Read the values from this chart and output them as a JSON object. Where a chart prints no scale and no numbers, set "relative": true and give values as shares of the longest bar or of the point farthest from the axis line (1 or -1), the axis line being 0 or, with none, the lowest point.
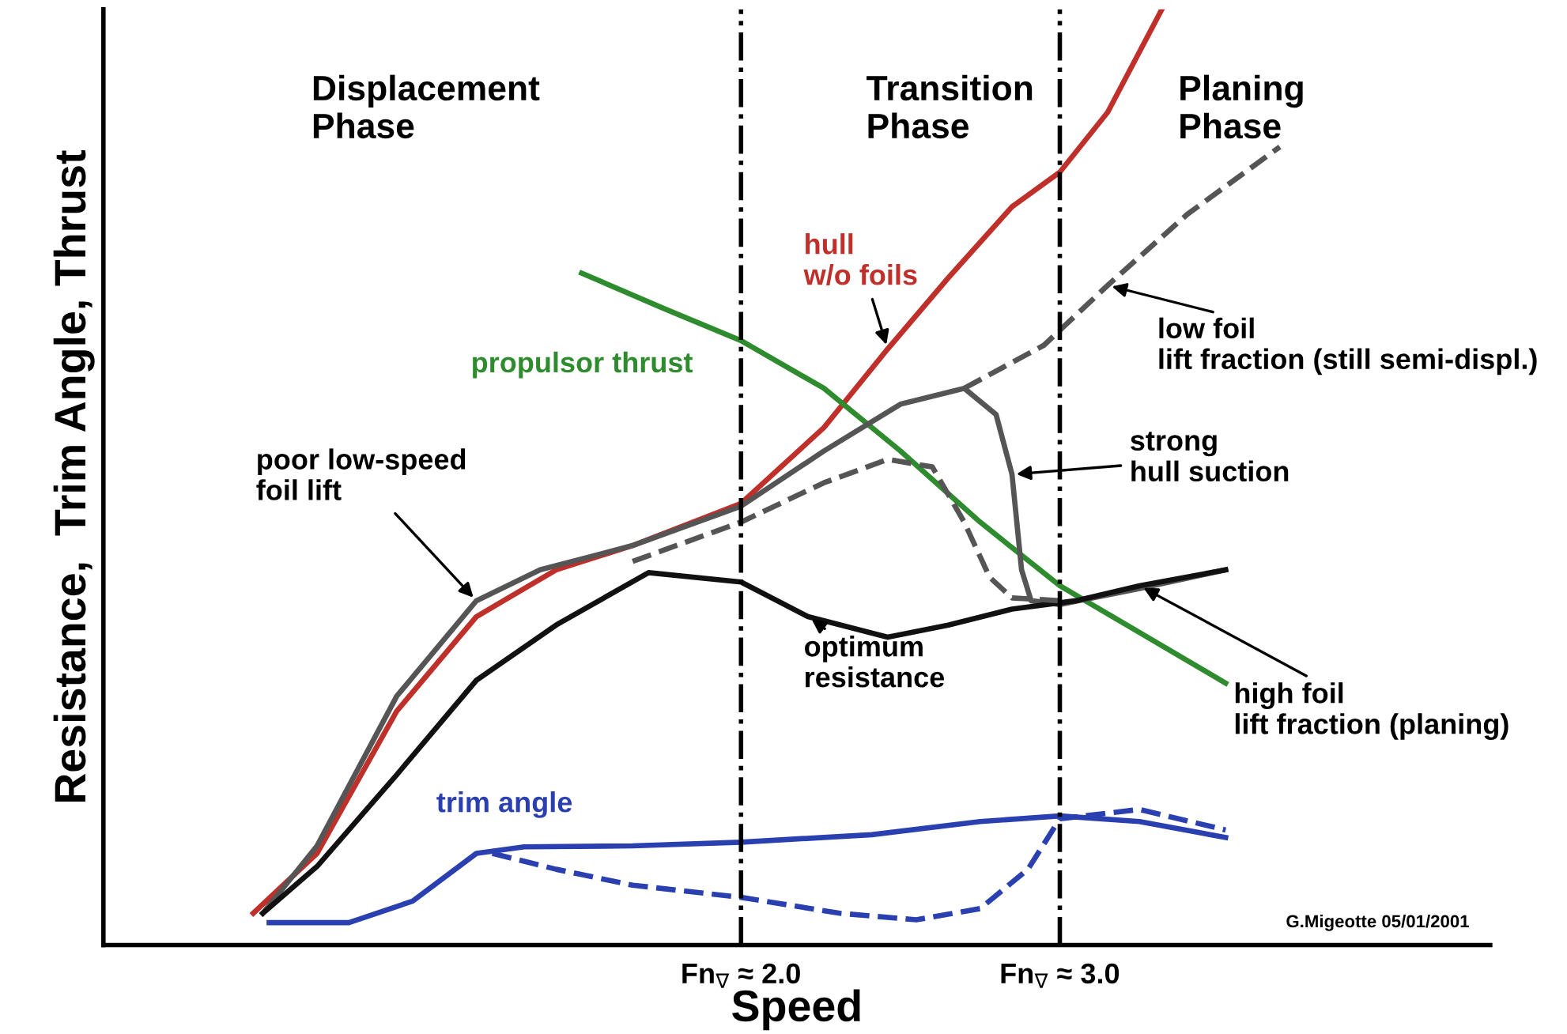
{
  "chart_data": {
    "type": "line",
    "relative": true,
    "xlabel": "Speed",
    "ylabel": "Resistance,  Trim Angle, Thrust",
    "xlim": [
      0,
      4.35
    ],
    "xticks": [
      {
        "value": 2.0,
        "label": "Fn$_{∇}$ ≈ 2.0"
      },
      {
        "value": 3.0,
        "label": "Fn$_{∇}$ ≈ 3.0"
      }
    ],
    "ref_lines": [
      {
        "axis": "x",
        "value": 2.0,
        "color": "#000000",
        "line_style": "dashdot"
      },
      {
        "axis": "x",
        "value": 3.0,
        "color": "#000000",
        "line_style": "dashdot"
      }
    ],
    "grid": false,
    "series": [
      {
        "name": "hull\nw/o foils",
        "color": "#c0302a",
        "line_style": "solid",
        "x": [
          0.47,
          0.67,
          0.92,
          1.17,
          1.42,
          1.66,
          2.0,
          2.26,
          2.46,
          2.65,
          2.85,
          3.0,
          3.15,
          3.32
        ],
        "values": [
          0.034,
          0.098,
          0.25,
          0.351,
          0.401,
          0.427,
          0.472,
          0.553,
          0.637,
          0.713,
          0.789,
          0.826,
          0.89,
          1.0
        ]
      },
      {
        "name": "propulsor thrust",
        "color": "#2e8b2e",
        "line_style": "solid",
        "x": [
          1.5,
          1.76,
          2.0,
          2.26,
          2.5,
          2.75,
          3.0,
          3.25,
          3.52
        ],
        "values": [
          0.718,
          0.68,
          0.646,
          0.595,
          0.528,
          0.452,
          0.384,
          0.334,
          0.28
        ]
      },
      {
        "color": "#555555",
        "line_style": "solid",
        "x": [
          0.5,
          0.67,
          0.92,
          1.17,
          1.37,
          1.66,
          2.0,
          2.26,
          2.5,
          2.7,
          2.8,
          2.85,
          2.88,
          2.91,
          3.0,
          3.25,
          3.52
        ],
        "values": [
          0.034,
          0.106,
          0.266,
          0.368,
          0.401,
          0.427,
          0.469,
          0.528,
          0.578,
          0.595,
          0.567,
          0.503,
          0.401,
          0.368,
          0.364,
          0.381,
          0.401
        ]
      },
      {
        "color": "#111111",
        "line_style": "solid",
        "x": [
          0.5,
          0.67,
          0.92,
          1.17,
          1.42,
          1.71,
          2.0,
          2.21,
          2.46,
          2.65,
          2.85,
          3.05,
          3.25,
          3.52
        ],
        "values": [
          0.034,
          0.084,
          0.182,
          0.283,
          0.342,
          0.398,
          0.388,
          0.351,
          0.329,
          0.342,
          0.359,
          0.368,
          0.384,
          0.401
        ]
      },
      {
        "color": "#555555",
        "line_style": "dashed",
        "x": [
          1.66,
          2.0,
          2.26,
          2.46,
          2.6,
          2.7,
          2.78,
          2.85,
          3.0
        ],
        "values": [
          0.41,
          0.452,
          0.494,
          0.519,
          0.511,
          0.452,
          0.393,
          0.371,
          0.368
        ]
      },
      {
        "color": "#555555",
        "line_style": "dashed",
        "x": [
          2.7,
          2.95,
          3.15,
          3.4,
          3.69
        ],
        "values": [
          0.595,
          0.641,
          0.705,
          0.781,
          0.853
        ]
      },
      {
        "name": "trim angle",
        "color": "#2a3fb0",
        "line_style": "solid",
        "x": [
          0.52,
          0.77,
          0.97,
          1.17,
          1.32,
          1.66,
          2.0,
          2.41,
          2.75,
          3.0,
          3.25,
          3.52
        ],
        "values": [
          0.024,
          0.024,
          0.047,
          0.098,
          0.105,
          0.106,
          0.11,
          0.118,
          0.132,
          0.138,
          0.132,
          0.115
        ]
      },
      {
        "color": "#2a3fb0",
        "line_style": "dashed",
        "x": [
          1.22,
          1.42,
          1.66,
          2.0,
          2.31,
          2.55,
          2.75,
          2.9,
          3.0,
          3.25,
          3.52
        ],
        "values": [
          0.098,
          0.081,
          0.064,
          0.051,
          0.034,
          0.027,
          0.039,
          0.081,
          0.135,
          0.145,
          0.123
        ]
      }
    ],
    "annotations": [
      "Displacement\nPhase",
      "Transition\nPhase",
      "Planing\nPhase",
      {
        "text": "poor low-speed\nfoil lift",
        "x": 1.17,
        "y": 0.368
      },
      {
        "text": "optimum\nresistance",
        "x": 2.21,
        "y": 0.351
      },
      {
        "text": "strong\nhull suction",
        "x": 2.85,
        "y": 0.503
      },
      {
        "text": "low foil\nlift fraction (still semi-displ.)",
        "x": 3.15,
        "y": 0.705
      },
      {
        "text": "high foil\nlift fraction (planing)",
        "x": 3.25,
        "y": 0.384
      },
      "G.Migeotte 05/01/2001"
    ]
  }
}
